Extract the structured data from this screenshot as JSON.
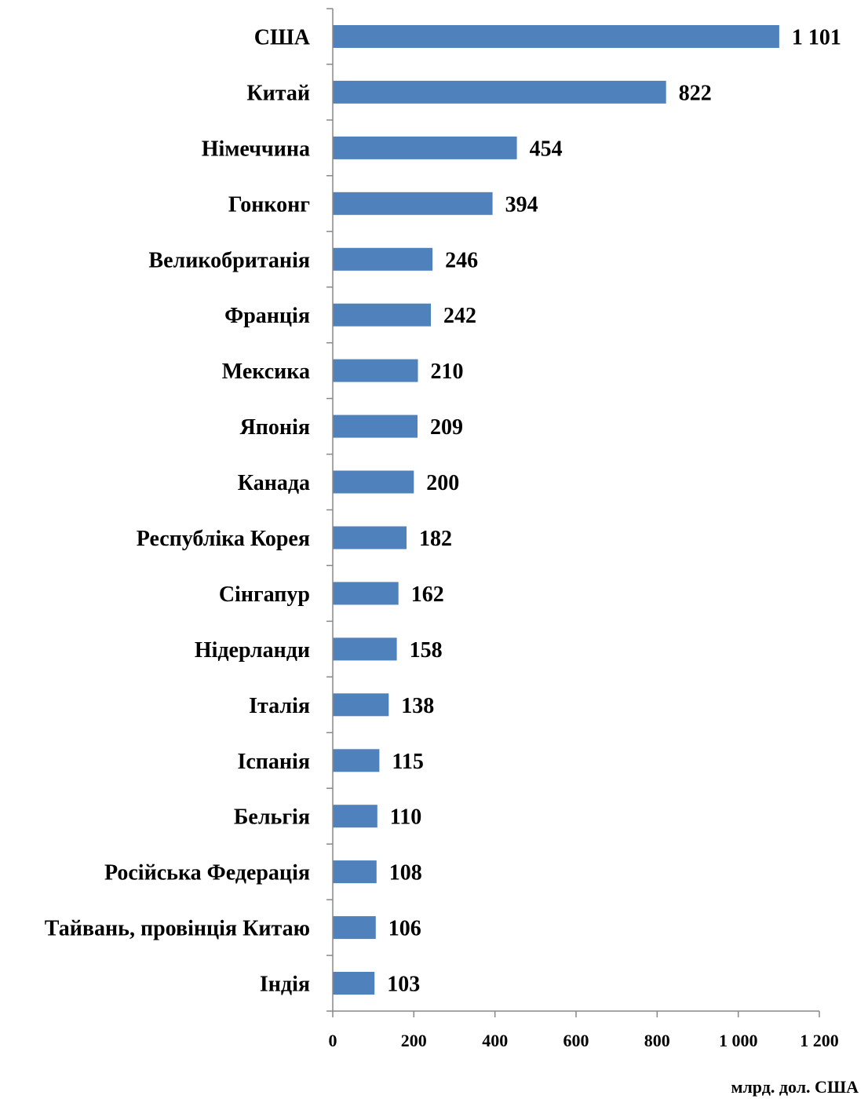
{
  "chart_data": {
    "type": "bar",
    "orientation": "horizontal",
    "categories": [
      "США",
      "Китай",
      "Німеччина",
      "Гонконг",
      "Великобританія",
      "Франція",
      "Мексика",
      "Японія",
      "Канада",
      "Республіка Корея",
      "Сінгапур",
      "Нідерланди",
      "Італія",
      "Іспанія",
      "Бельгія",
      "Російська Федерація",
      "Тайвань, провінція Китаю",
      "Індія"
    ],
    "values": [
      1101,
      822,
      454,
      394,
      246,
      242,
      210,
      209,
      200,
      182,
      162,
      158,
      138,
      115,
      110,
      108,
      106,
      103
    ],
    "value_labels": [
      "1 101",
      "822",
      "454",
      "394",
      "246",
      "242",
      "210",
      "209",
      "200",
      "182",
      "162",
      "158",
      "138",
      "115",
      "110",
      "108",
      "106",
      "103"
    ],
    "xlim": [
      0,
      1200
    ],
    "xticks": [
      0,
      200,
      400,
      600,
      800,
      1000,
      1200
    ],
    "xtick_labels": [
      "0",
      "200",
      "400",
      "600",
      "800",
      "1 000",
      "1 200"
    ],
    "unit_label": "млрд. дол. США",
    "bar_color": "#4f81bd",
    "grid": false,
    "legend": "none"
  }
}
